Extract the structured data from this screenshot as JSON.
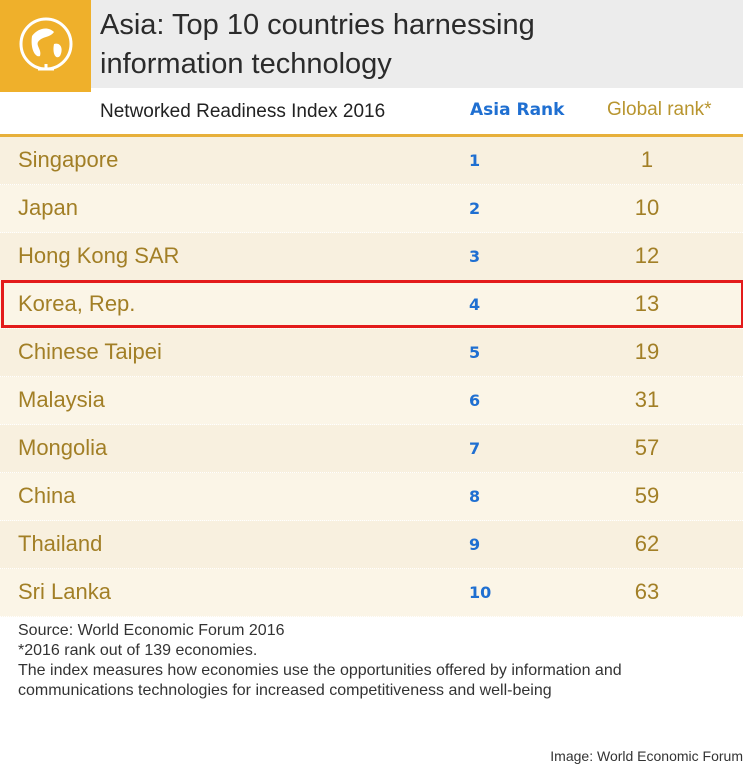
{
  "title_line1": "Asia: Top 10 countries harnessing",
  "title_line2": "information technology",
  "index_label": "Networked Readiness Index 2016",
  "col_asia_rank": "Asia Rank",
  "col_global_rank": "Global rank*",
  "highlight_country": "Korea, Rep.",
  "chart_data": {
    "type": "table",
    "columns": [
      "Networked Readiness Index 2016",
      "Asia Rank",
      "Global rank*"
    ],
    "rows": [
      {
        "country": "Singapore",
        "asia_rank": "1",
        "global_rank": "1"
      },
      {
        "country": "Japan",
        "asia_rank": "2",
        "global_rank": "10"
      },
      {
        "country": "Hong Kong SAR",
        "asia_rank": "3",
        "global_rank": "12"
      },
      {
        "country": "Korea, Rep.",
        "asia_rank": "4",
        "global_rank": "13"
      },
      {
        "country": "Chinese Taipei",
        "asia_rank": "5",
        "global_rank": "19"
      },
      {
        "country": "Malaysia",
        "asia_rank": "6",
        "global_rank": "31"
      },
      {
        "country": "Mongolia",
        "asia_rank": "7",
        "global_rank": "57"
      },
      {
        "country": "China",
        "asia_rank": "8",
        "global_rank": "59"
      },
      {
        "country": "Thailand",
        "asia_rank": "9",
        "global_rank": "62"
      },
      {
        "country": "Sri Lanka",
        "asia_rank": "10",
        "global_rank": "63"
      }
    ]
  },
  "notes": {
    "source": "Source: World Economic Forum 2016",
    "footnote": "*2016 rank out of 139 economies.",
    "description_line1": "The index measures how economies use the opportunities offered by information and",
    "description_line2": "communications technologies for increased competitiveness and well-being"
  },
  "credit": "Image: World Economic Forum",
  "colors": {
    "accent_orange": "#efb02b",
    "country_text": "#a27f26",
    "asia_rank_blue": "#1f6fd1",
    "highlight_red": "#e31b1b"
  },
  "icons": {
    "logo": "globe-icon"
  }
}
